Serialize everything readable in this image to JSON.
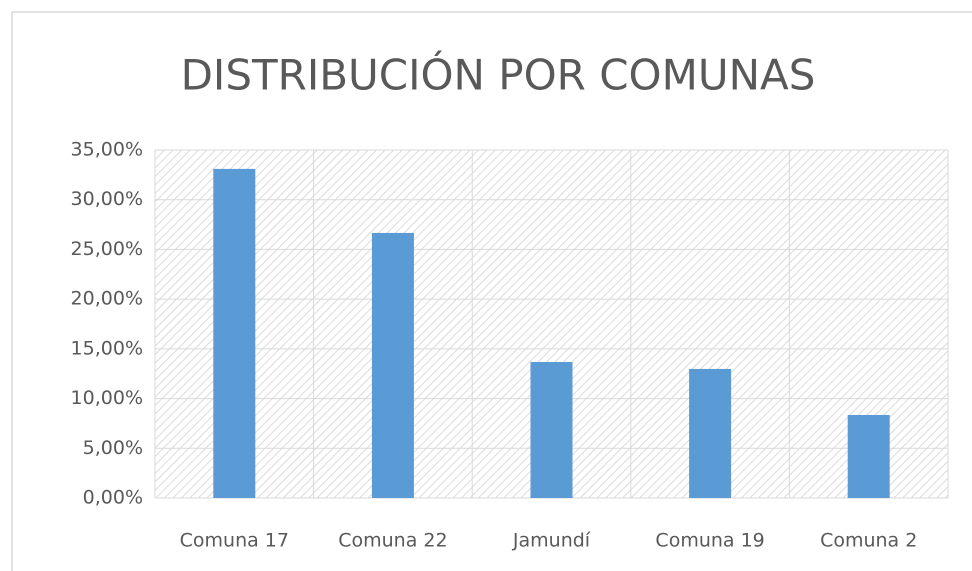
{
  "chart_data": {
    "type": "bar",
    "title": "DISTRIBUCIÓN POR COMUNAS",
    "categories": [
      "Comuna 17",
      "Comuna 22",
      "Jamundí",
      "Comuna 19",
      "Comuna 2"
    ],
    "values": [
      33.1,
      26.66,
      13.68,
      12.98,
      8.35
    ],
    "color": "#5b9bd5",
    "ylim": [
      0,
      35
    ],
    "yticks": [
      {
        "value": 0,
        "label": "0,00%"
      },
      {
        "value": 5,
        "label": "5,00%"
      },
      {
        "value": 10,
        "label": "10,00%"
      },
      {
        "value": 15,
        "label": "15,00%"
      },
      {
        "value": 20,
        "label": "20,00%"
      },
      {
        "value": 25,
        "label": "25,00%"
      },
      {
        "value": 30,
        "label": "30,00%"
      },
      {
        "value": 35,
        "label": "35,00%"
      }
    ],
    "grid": true
  }
}
